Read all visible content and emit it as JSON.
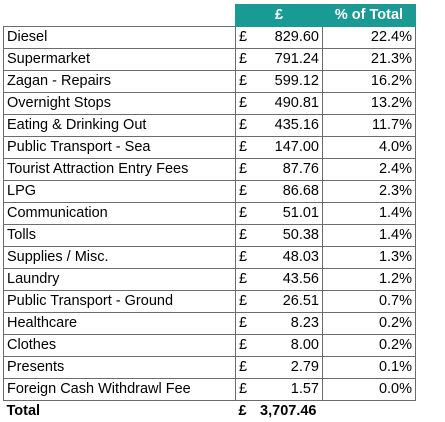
{
  "header": {
    "currency_col": "£",
    "percent_col": "% of Total"
  },
  "currency_symbol": "£",
  "rows": [
    {
      "category": "Diesel",
      "amount": "829.60",
      "percent": "22.4%"
    },
    {
      "category": "Supermarket",
      "amount": "791.24",
      "percent": "21.3%"
    },
    {
      "category": "Zagan - Repairs",
      "amount": "599.12",
      "percent": "16.2%"
    },
    {
      "category": "Overnight Stops",
      "amount": "490.81",
      "percent": "13.2%"
    },
    {
      "category": "Eating & Drinking Out",
      "amount": "435.16",
      "percent": "11.7%"
    },
    {
      "category": "Public Transport - Sea",
      "amount": "147.00",
      "percent": "4.0%"
    },
    {
      "category": "Tourist Attraction Entry Fees",
      "amount": "87.76",
      "percent": "2.4%"
    },
    {
      "category": "LPG",
      "amount": "86.68",
      "percent": "2.3%"
    },
    {
      "category": "Communication",
      "amount": "51.01",
      "percent": "1.4%"
    },
    {
      "category": "Tolls",
      "amount": "50.38",
      "percent": "1.4%"
    },
    {
      "category": "Supplies / Misc.",
      "amount": "48.03",
      "percent": "1.3%"
    },
    {
      "category": "Laundry",
      "amount": "43.56",
      "percent": "1.2%"
    },
    {
      "category": "Public Transport - Ground",
      "amount": "26.51",
      "percent": "0.7%"
    },
    {
      "category": "Healthcare",
      "amount": "8.23",
      "percent": "0.2%"
    },
    {
      "category": "Clothes",
      "amount": "8.00",
      "percent": "0.2%"
    },
    {
      "category": "Presents",
      "amount": "2.79",
      "percent": "0.1%"
    },
    {
      "category": "Foreign Cash Withdrawl Fee",
      "amount": "1.57",
      "percent": "0.0%"
    }
  ],
  "total": {
    "label": "Total",
    "currency": "£",
    "amount": "3,707.46"
  },
  "colors": {
    "header_bg": "#1a9a94",
    "header_text": "#ffffff",
    "grid": "#6c6c6c"
  }
}
